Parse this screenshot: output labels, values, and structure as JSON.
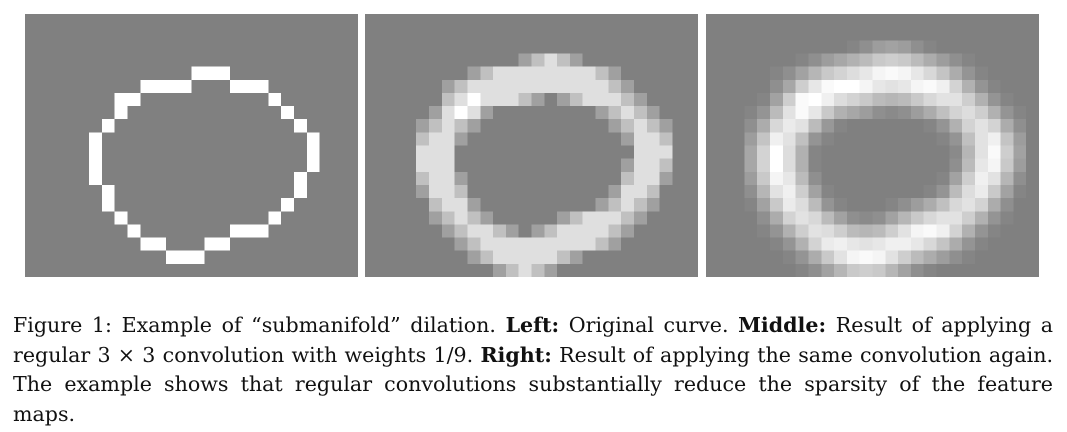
{
  "figure": {
    "grid": {
      "columns": 26,
      "rows": 20,
      "background": "#808080",
      "foreground": "#ffffff",
      "curve_pixels": [
        [
          13,
          4
        ],
        [
          14,
          4
        ],
        [
          15,
          4
        ],
        [
          9,
          5
        ],
        [
          10,
          5
        ],
        [
          11,
          5
        ],
        [
          12,
          5
        ],
        [
          16,
          5
        ],
        [
          17,
          5
        ],
        [
          18,
          5
        ],
        [
          7,
          6
        ],
        [
          8,
          6
        ],
        [
          19,
          6
        ],
        [
          7,
          7
        ],
        [
          20,
          7
        ],
        [
          6,
          8
        ],
        [
          21,
          8
        ],
        [
          5,
          9
        ],
        [
          22,
          9
        ],
        [
          5,
          10
        ],
        [
          22,
          10
        ],
        [
          5,
          11
        ],
        [
          22,
          11
        ],
        [
          5,
          12
        ],
        [
          21,
          12
        ],
        [
          6,
          13
        ],
        [
          21,
          13
        ],
        [
          6,
          14
        ],
        [
          20,
          14
        ],
        [
          7,
          15
        ],
        [
          19,
          15
        ],
        [
          8,
          16
        ],
        [
          16,
          16
        ],
        [
          17,
          16
        ],
        [
          18,
          16
        ],
        [
          9,
          17
        ],
        [
          10,
          17
        ],
        [
          14,
          17
        ],
        [
          15,
          17
        ],
        [
          11,
          18
        ],
        [
          12,
          18
        ],
        [
          13,
          18
        ]
      ]
    },
    "panels": [
      {
        "id": "left",
        "convolutions": 0
      },
      {
        "id": "middle",
        "convolutions": 1
      },
      {
        "id": "right",
        "convolutions": 2
      }
    ]
  },
  "caption": {
    "number": "Figure 1:",
    "intro": "Example of “submanifold” dilation.",
    "left_label": "Left:",
    "left_text": "Original curve.",
    "middle_label": "Middle:",
    "middle_text": "Result of applying a regular 3 × 3 convolution with weights 1/9.",
    "right_label": "Right:",
    "right_text": "Result of applying the same convolution again. The example shows that regular convolutions substantially reduce the sparsity of the feature maps."
  }
}
